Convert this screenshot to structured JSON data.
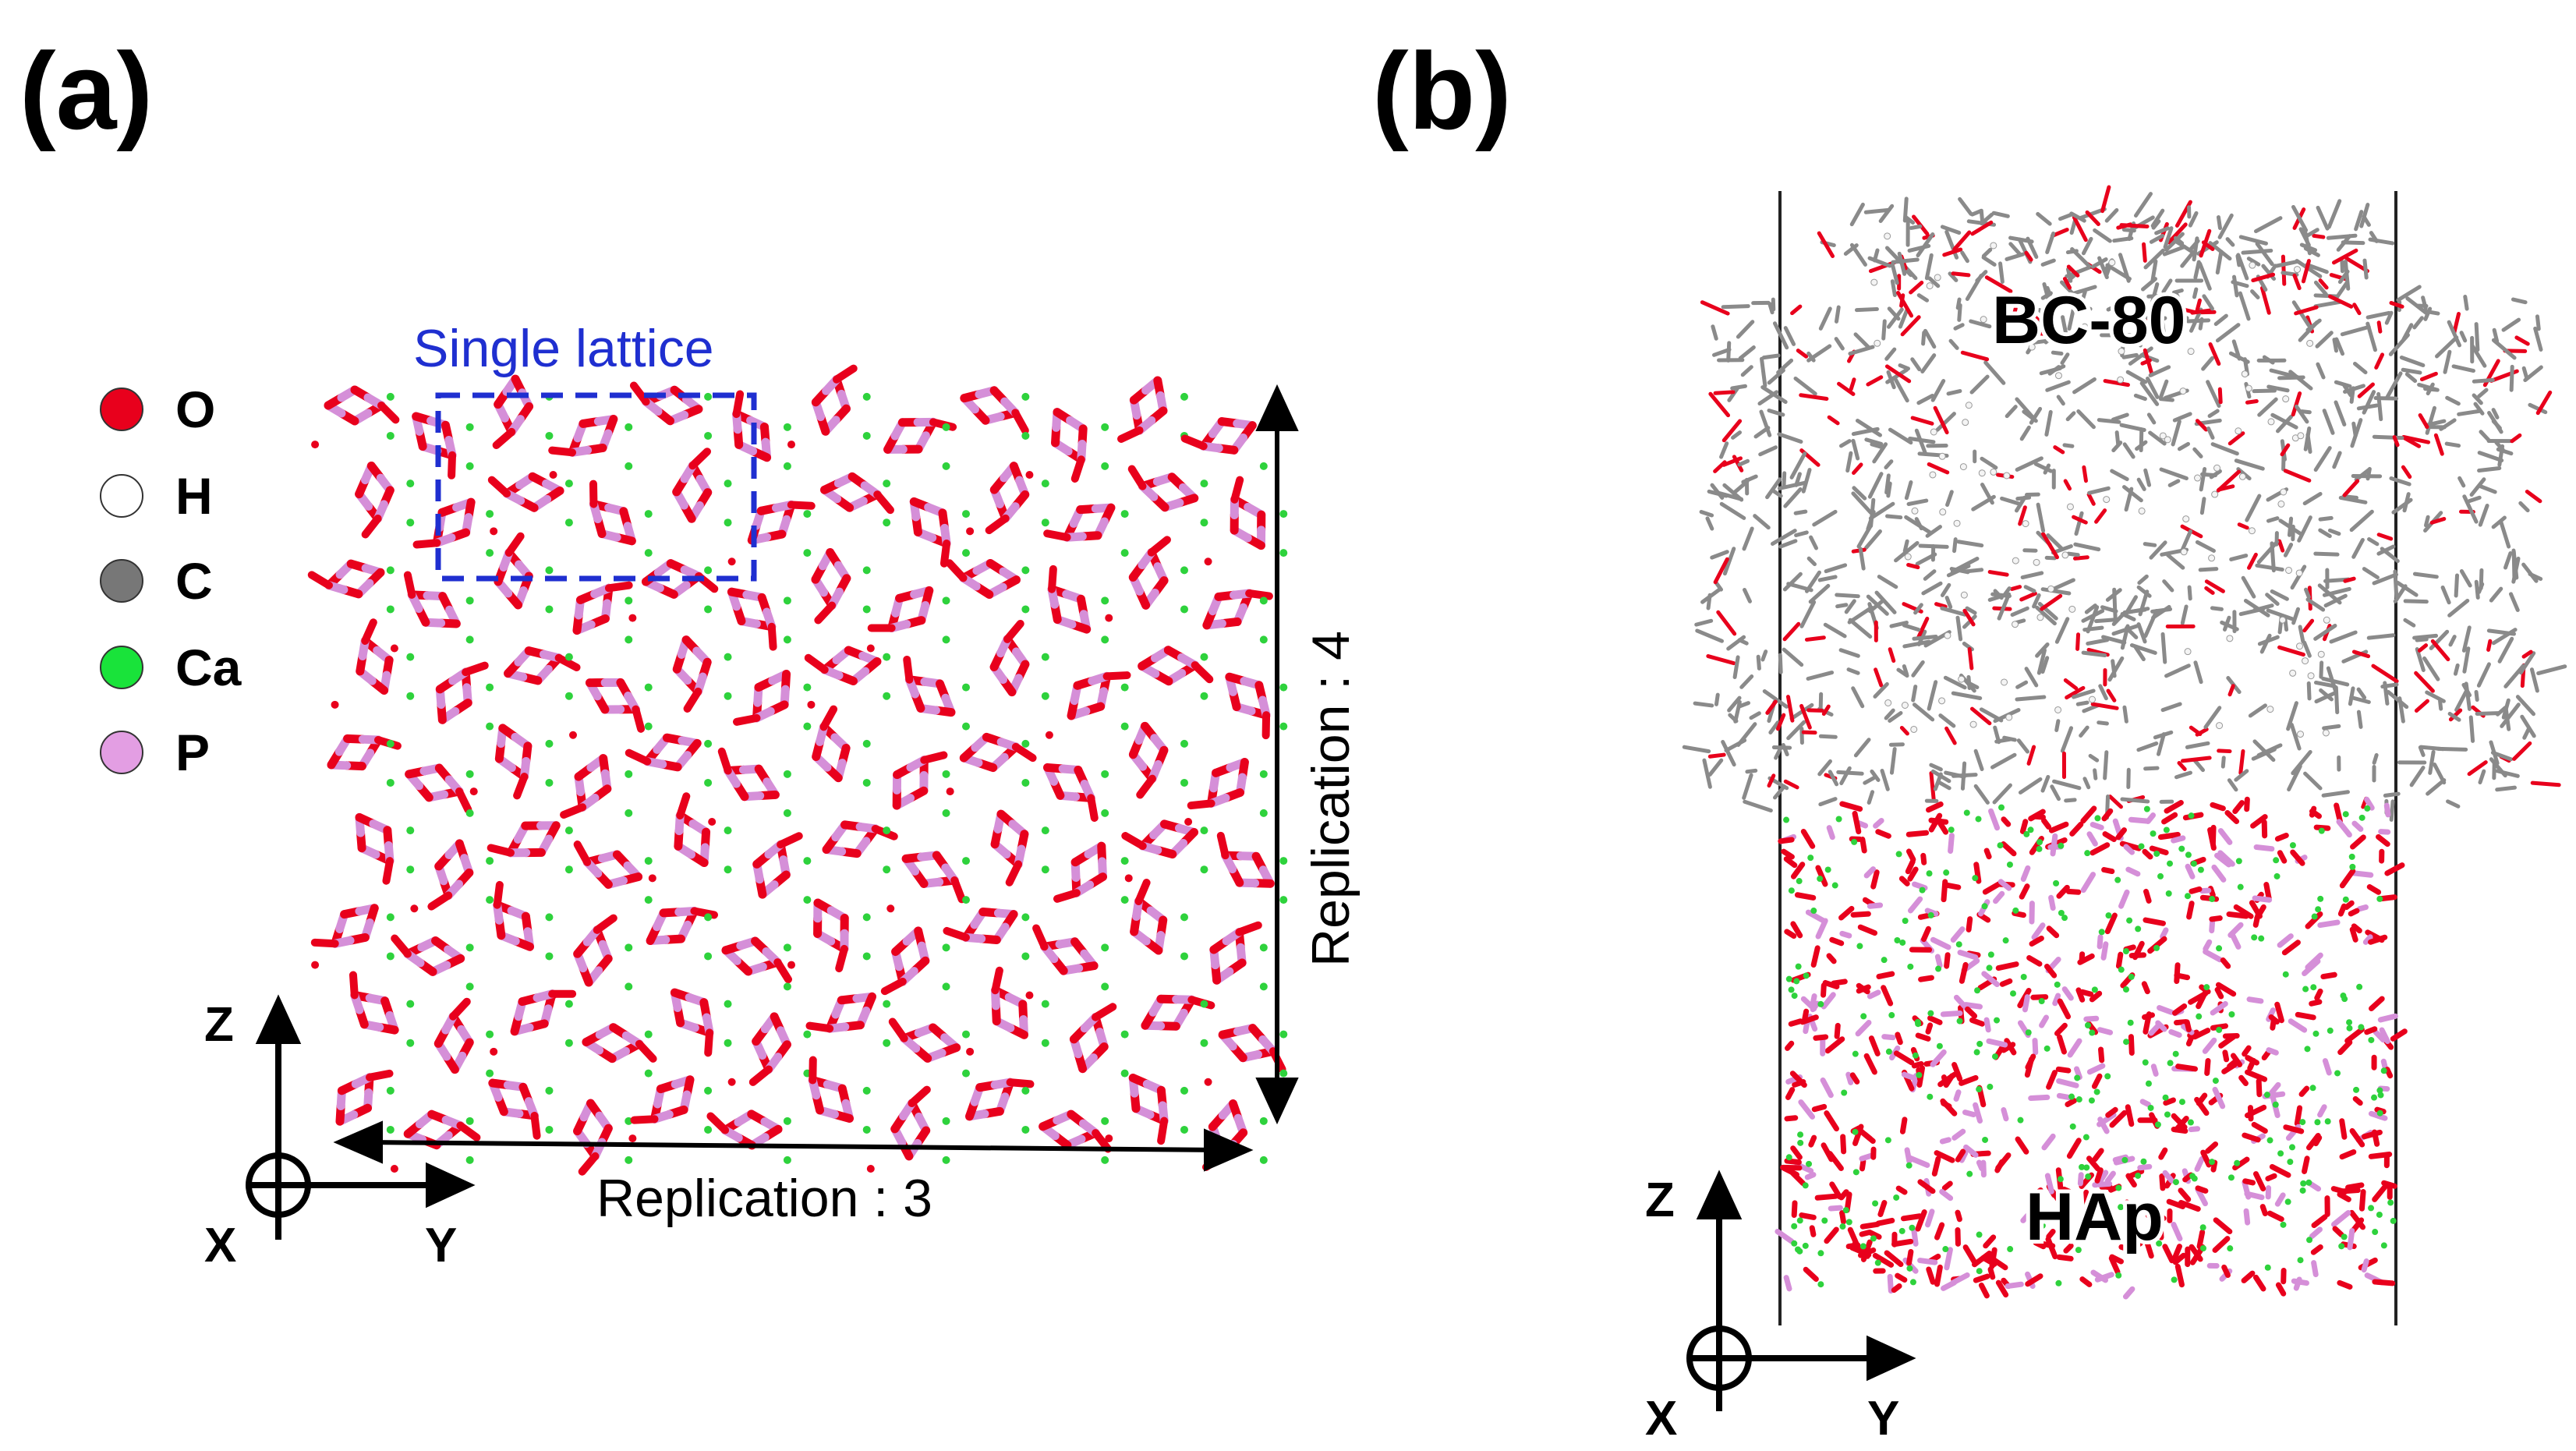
{
  "panels": {
    "a": {
      "label": "(a)",
      "legend": [
        {
          "symbol": "O",
          "color": "#e8001c"
        },
        {
          "symbol": "H",
          "color": "#ffffff"
        },
        {
          "symbol": "C",
          "color": "#777777"
        },
        {
          "symbol": "Ca",
          "color": "#19e33a"
        },
        {
          "symbol": "P",
          "color": "#e39ee3"
        }
      ],
      "single_lattice_label": "Single lattice",
      "replication_y_label": "Replication : 3",
      "replication_z_label": "Replication : 4",
      "axes": {
        "vertical": "Z",
        "horizontal": "Y",
        "out_of_plane": "X"
      }
    },
    "b": {
      "label": "(b)",
      "top_layer_label": "BC-80",
      "bottom_layer_label": "HAp",
      "axes": {
        "vertical": "Z",
        "horizontal": "Y",
        "out_of_plane": "X"
      }
    }
  },
  "colors": {
    "oxygen": "#e8001c",
    "phosphorus": "#d58fd8",
    "calcium": "#2ed23c",
    "carbon": "#8a8a8a",
    "lattice_box": "#1f2fd0"
  }
}
